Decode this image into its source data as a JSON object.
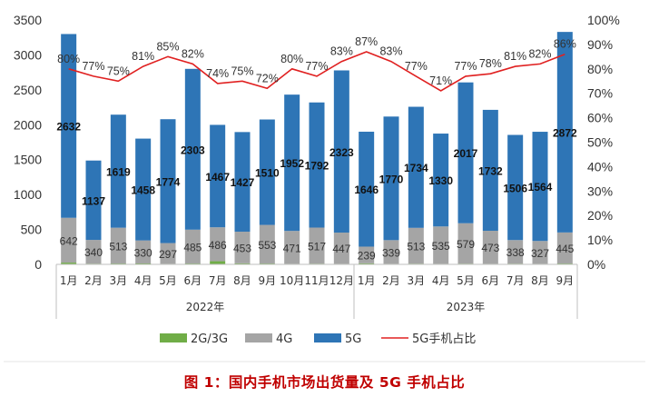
{
  "chart_data": {
    "type": "bar",
    "title": "",
    "caption": "图 1：国内手机市场出货量及 5G 手机占比",
    "xlabel": "",
    "ylabel": "",
    "ylim": [
      0,
      3500
    ],
    "y2lim": [
      0,
      1.0
    ],
    "y_ticks": [
      "0",
      "500",
      "1000",
      "1500",
      "2000",
      "2500",
      "3000",
      "3500"
    ],
    "y2_ticks": [
      "0%",
      "10%",
      "20%",
      "30%",
      "40%",
      "50%",
      "60%",
      "70%",
      "80%",
      "90%",
      "100%"
    ],
    "grid": false,
    "legend_position": "bottom",
    "categories": [
      "1月",
      "2月",
      "3月",
      "4月",
      "5月",
      "6月",
      "7月",
      "8月",
      "9月",
      "10月",
      "11月",
      "12月",
      "1月",
      "2月",
      "3月",
      "4月",
      "5月",
      "6月",
      "7月",
      "8月",
      "9月"
    ],
    "groups": [
      {
        "label": "2022年",
        "start": 0,
        "end": 11
      },
      {
        "label": "2023年",
        "start": 12,
        "end": 20
      }
    ],
    "series": [
      {
        "name": "2G/3G",
        "kind": "bar-stacked",
        "color": "#70ad47",
        "values": [
          25,
          10,
          12,
          13,
          8,
          12,
          45,
          15,
          12,
          8,
          10,
          8,
          15,
          8,
          10,
          8,
          10,
          8,
          10,
          8,
          12
        ]
      },
      {
        "name": "4G",
        "kind": "bar-stacked",
        "color": "#a5a5a5",
        "values": [
          642,
          340,
          513,
          330,
          297,
          485,
          486,
          453,
          553,
          471,
          517,
          447,
          239,
          339,
          513,
          535,
          579,
          473,
          338,
          327,
          445
        ]
      },
      {
        "name": "5G",
        "kind": "bar-stacked",
        "color": "#2e75b6",
        "values": [
          2632,
          1137,
          1619,
          1458,
          1774,
          2303,
          1467,
          1427,
          1510,
          1952,
          1792,
          2323,
          1646,
          1770,
          1734,
          1330,
          2017,
          1732,
          1506,
          1564,
          2872
        ]
      },
      {
        "name": "5G手机占比",
        "kind": "line",
        "axis": "right",
        "color": "#e02020",
        "values": [
          0.8,
          0.77,
          0.75,
          0.81,
          0.85,
          0.82,
          0.74,
          0.75,
          0.72,
          0.8,
          0.77,
          0.83,
          0.87,
          0.83,
          0.77,
          0.71,
          0.77,
          0.78,
          0.81,
          0.82,
          0.86
        ],
        "labels": [
          "80%",
          "77%",
          "75%",
          "81%",
          "85%",
          "82%",
          "74%",
          "75%",
          "72%",
          "80%",
          "77%",
          "83%",
          "87%",
          "83%",
          "77%",
          "71%",
          "77%",
          "78%",
          "81%",
          "82%",
          "86%"
        ]
      }
    ],
    "label_4g": [
      "642",
      "340",
      "513",
      "330",
      "297",
      "485",
      "486",
      "453",
      "553",
      "471",
      "517",
      "447",
      "239",
      "339",
      "513",
      "535",
      "579",
      "473",
      "338",
      "327",
      "445"
    ],
    "label_5g": [
      "2632",
      "1137",
      "1619",
      "1458",
      "1774",
      "2303",
      "1467",
      "1427",
      "1510",
      "1952",
      "1792",
      "2323",
      "1646",
      "1770",
      "1734",
      "1330",
      "2017",
      "1732",
      "1506",
      "1564",
      "2872"
    ]
  }
}
